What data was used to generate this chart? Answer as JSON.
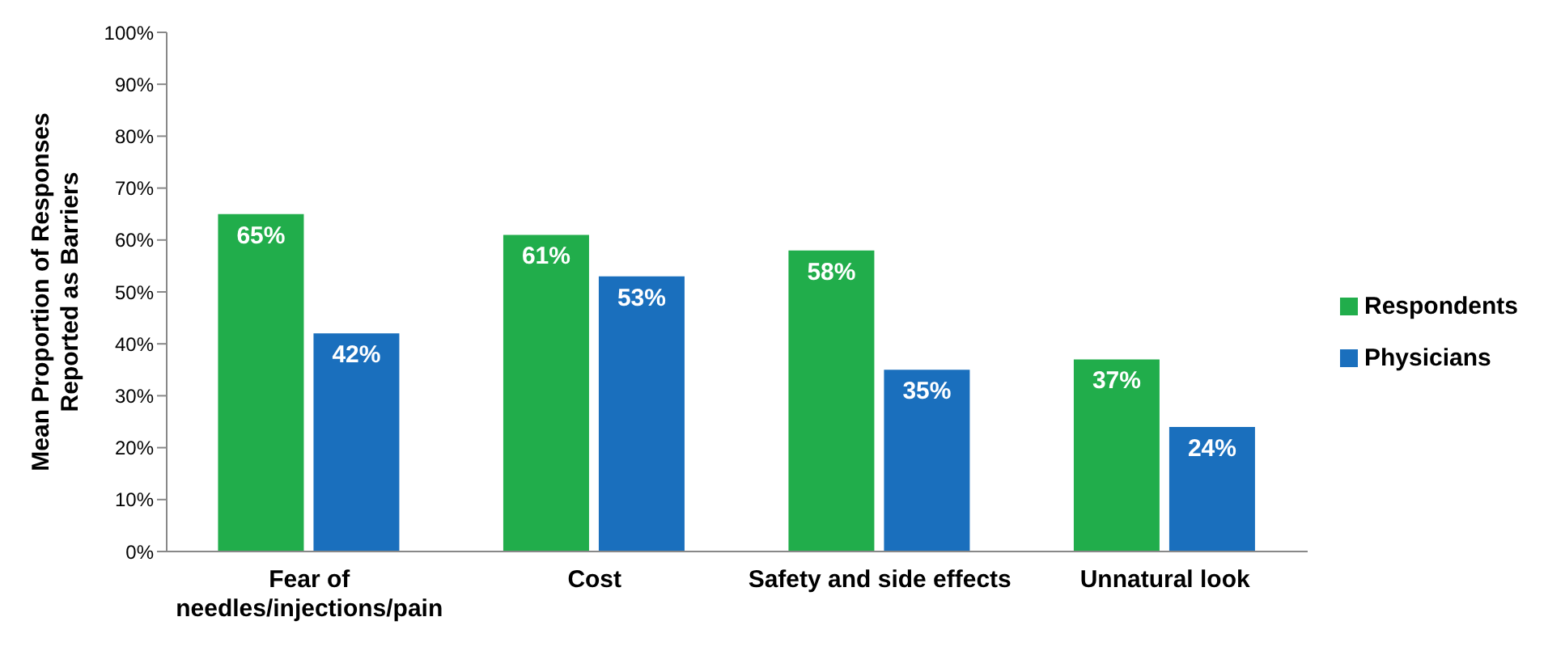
{
  "chart_data": {
    "type": "bar",
    "ylabel": "Mean Proportion of Responses Reported as Barriers",
    "categories": [
      "Fear of needles/injections/pain",
      "Cost",
      "Safety and side effects",
      "Unnatural look"
    ],
    "series": [
      {
        "name": "Respondents",
        "color": "#21ad4b",
        "values": [
          65,
          61,
          58,
          37
        ],
        "value_labels": [
          "65%",
          "61%",
          "58%",
          "37%"
        ]
      },
      {
        "name": "Physicians",
        "color": "#1a6fbd",
        "values": [
          42,
          53,
          35,
          24
        ],
        "value_labels": [
          "42%",
          "53%",
          "35%",
          "24%"
        ]
      }
    ],
    "ylim": [
      0,
      100
    ],
    "yticks": [
      {
        "value": 0,
        "label": "0%"
      },
      {
        "value": 10,
        "label": "10%"
      },
      {
        "value": 20,
        "label": "20%"
      },
      {
        "value": 30,
        "label": "30%"
      },
      {
        "value": 40,
        "label": "40%"
      },
      {
        "value": 50,
        "label": "50%"
      },
      {
        "value": 60,
        "label": "60%"
      },
      {
        "value": 70,
        "label": "70%"
      },
      {
        "value": 80,
        "label": "80%"
      },
      {
        "value": 90,
        "label": "90%"
      },
      {
        "value": 100,
        "label": "100%"
      }
    ],
    "grid": false,
    "legend": "right"
  }
}
